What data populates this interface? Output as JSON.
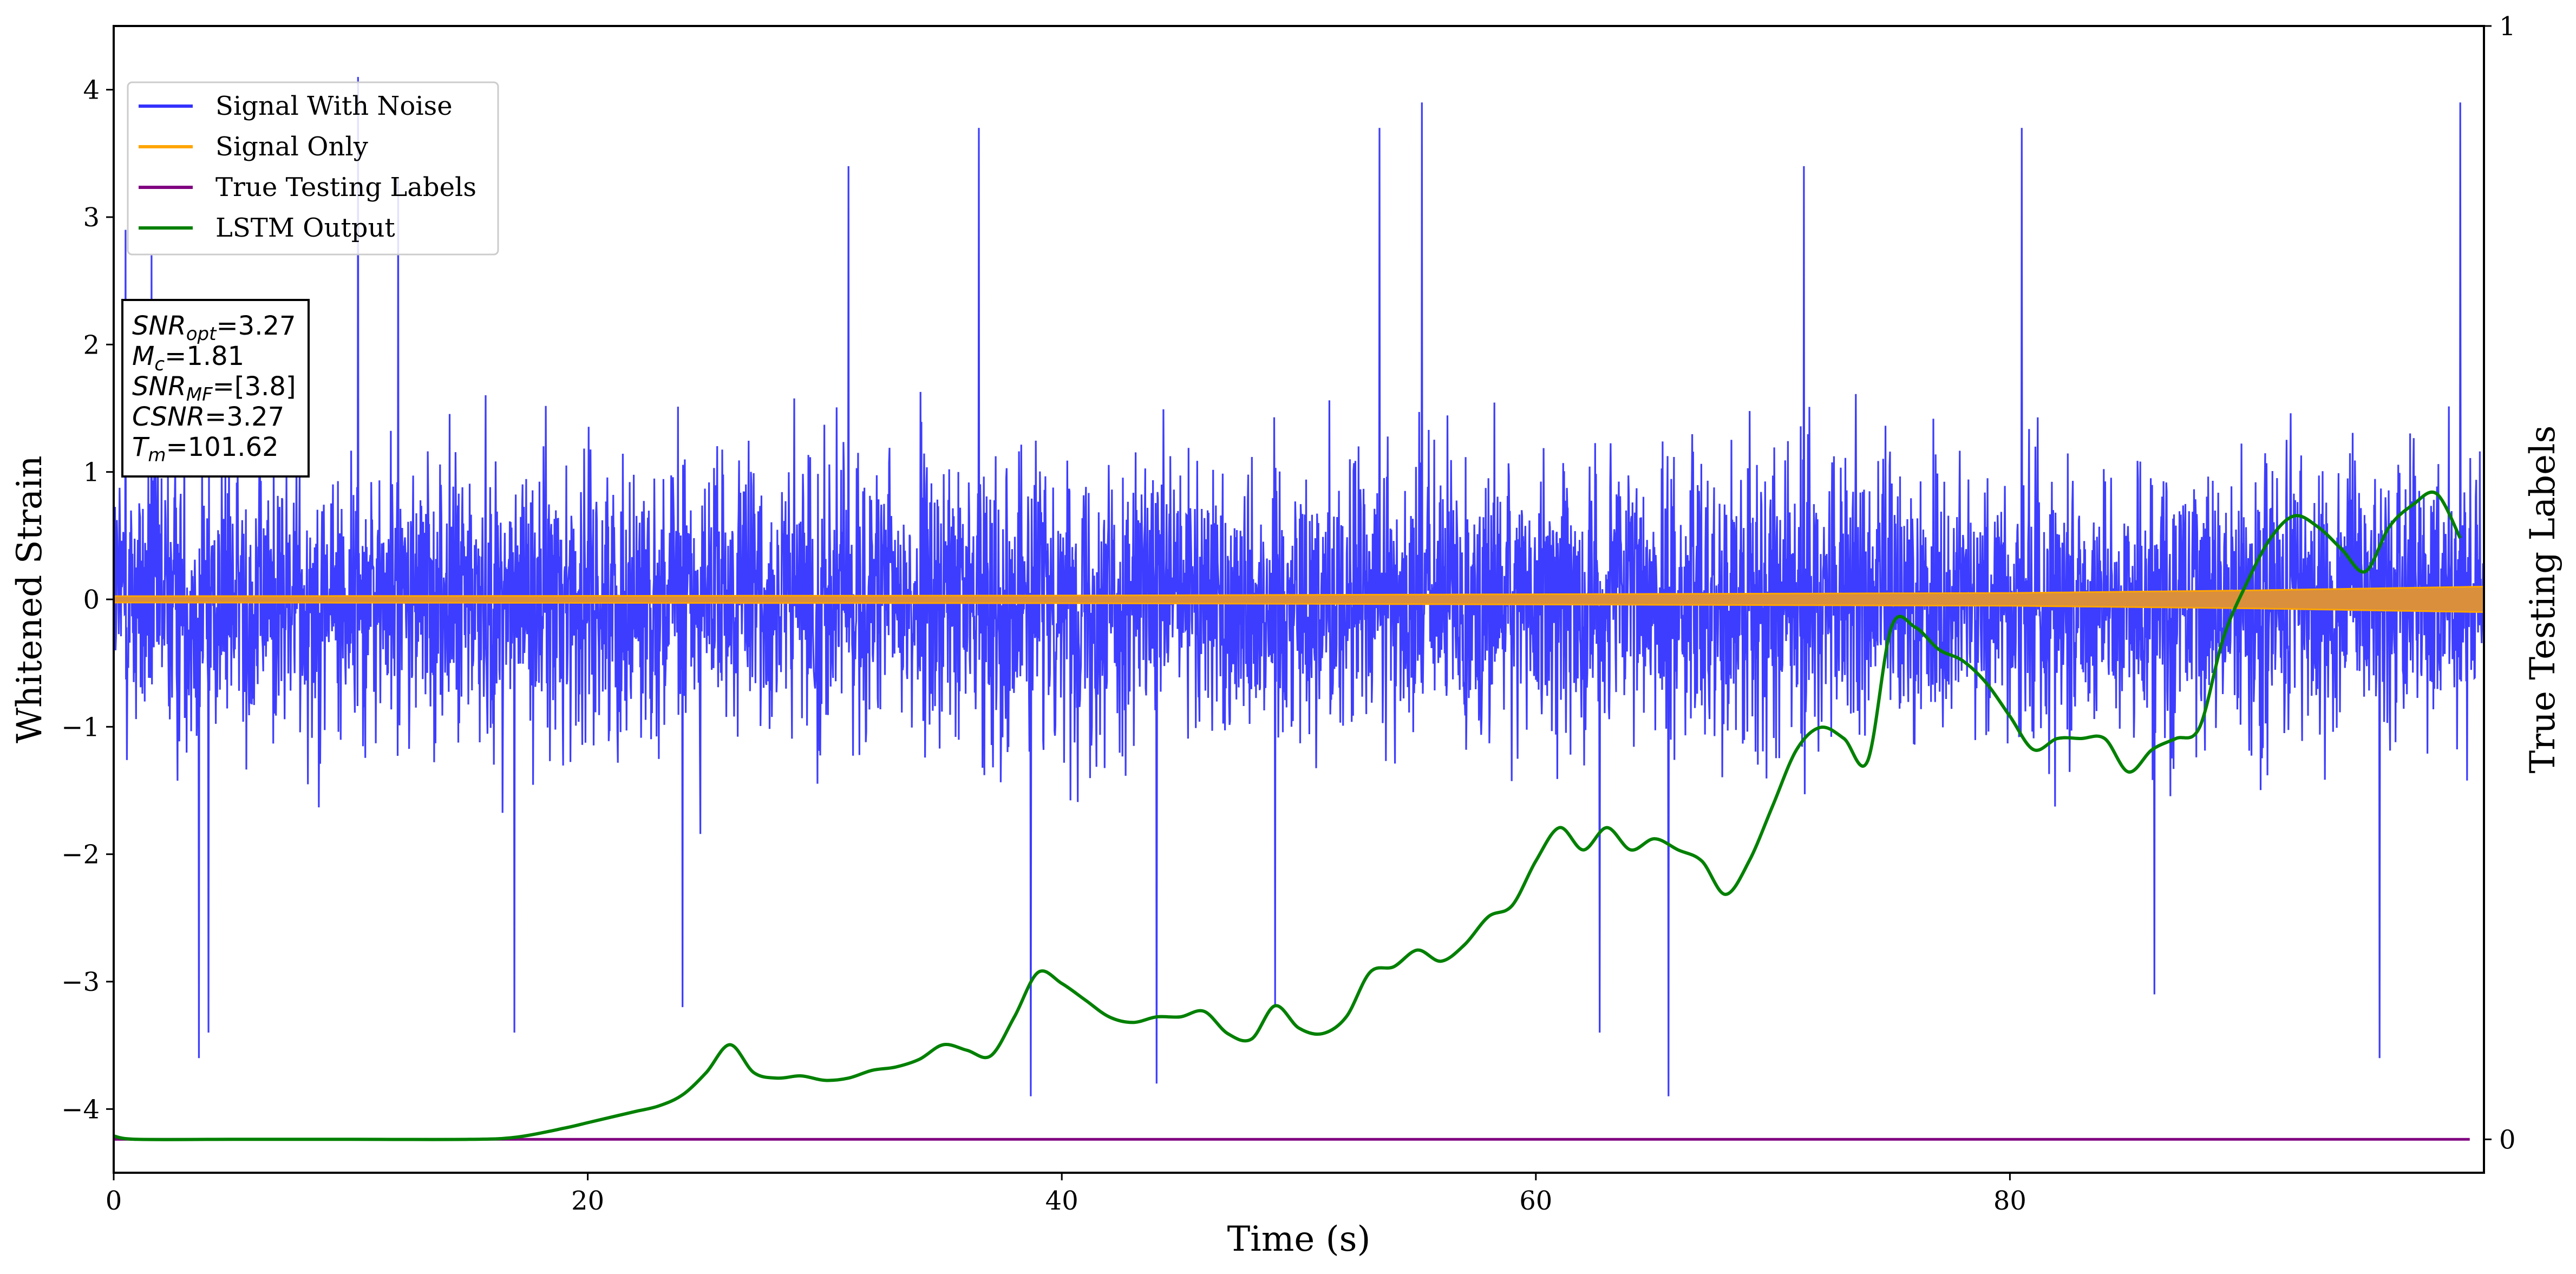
{
  "chart_data": {
    "type": "line",
    "title": "",
    "xlabel": "Time (s)",
    "ylabel": "Whitened Strain",
    "ylabel_right": "True Testing Labels",
    "xlim": [
      0,
      100
    ],
    "ylim": [
      -4.5,
      4.5
    ],
    "ylim_right": [
      -0.03,
      1.0
    ],
    "x_ticks": [
      0,
      20,
      40,
      60,
      80
    ],
    "y_ticks": [
      -4,
      -3,
      -2,
      -1,
      0,
      1,
      2,
      3,
      4
    ],
    "y_ticks_right": [
      0,
      1
    ],
    "grid": false,
    "legend_position": "top-left",
    "annotation_lines": [
      {
        "name": "SNR",
        "sub": "opt",
        "value": "=3.27"
      },
      {
        "name": "M",
        "sub": "c",
        "value": "=1.81"
      },
      {
        "name": "SNR",
        "sub": "MF",
        "value": "=[3.8]"
      },
      {
        "name": "CSNR",
        "sub": "",
        "value": "=3.27"
      },
      {
        "name": "T",
        "sub": "m",
        "value": "=101.62"
      }
    ],
    "series": [
      {
        "name": "Signal With Noise",
        "color": "#3333ff",
        "axis": "left",
        "description": "dense whitened noise, envelope approx ±1.8 with spikes",
        "envelope_upper": 1.8,
        "envelope_lower": -1.8,
        "spikes": [
          {
            "x": 0.5,
            "y": 2.9
          },
          {
            "x": 1.6,
            "y": 2.7
          },
          {
            "x": 3.6,
            "y": -3.6
          },
          {
            "x": 4.0,
            "y": -3.4
          },
          {
            "x": 10.3,
            "y": 4.1
          },
          {
            "x": 12.0,
            "y": 3.3
          },
          {
            "x": 16.9,
            "y": -3.4
          },
          {
            "x": 24.0,
            "y": -3.2
          },
          {
            "x": 31.0,
            "y": 3.4
          },
          {
            "x": 36.5,
            "y": 3.7
          },
          {
            "x": 38.7,
            "y": -3.9
          },
          {
            "x": 44.0,
            "y": -3.8
          },
          {
            "x": 49.0,
            "y": -3.2
          },
          {
            "x": 53.4,
            "y": 3.7
          },
          {
            "x": 55.2,
            "y": 3.9
          },
          {
            "x": 62.7,
            "y": -3.4
          },
          {
            "x": 65.6,
            "y": -3.9
          },
          {
            "x": 71.3,
            "y": 3.4
          },
          {
            "x": 80.5,
            "y": 3.7
          },
          {
            "x": 86.1,
            "y": -3.1
          },
          {
            "x": 95.6,
            "y": -3.6
          },
          {
            "x": 99.0,
            "y": 3.9
          }
        ]
      },
      {
        "name": "Signal Only",
        "color": "#ffa500",
        "axis": "left",
        "description": "chirp signal, amplitude ~0.02 rising to ~0.1",
        "amplitude_points": [
          [
            0,
            0.025
          ],
          [
            40,
            0.03
          ],
          [
            80,
            0.05
          ],
          [
            90,
            0.07
          ],
          [
            100,
            0.1
          ]
        ]
      },
      {
        "name": "True Testing Labels",
        "color": "#800080",
        "axis": "right",
        "x": [
          0,
          100
        ],
        "y": [
          0,
          0
        ]
      },
      {
        "name": "LSTM Output",
        "color": "#008000",
        "axis": "right",
        "x": [
          0,
          1,
          5,
          10,
          15,
          17,
          19,
          20,
          21,
          22,
          23,
          24,
          25,
          26,
          27,
          28,
          29,
          30,
          31,
          32,
          33,
          34,
          35,
          36,
          37,
          38,
          39,
          40,
          41,
          42,
          43,
          44,
          45,
          46,
          47,
          48,
          49,
          50,
          51,
          52,
          53,
          54,
          55,
          56,
          57,
          58,
          59,
          60,
          61,
          62,
          63,
          64,
          65,
          66,
          67,
          68,
          69,
          70,
          71,
          72,
          73,
          74,
          75,
          76,
          77,
          78,
          79,
          80,
          81,
          82,
          83,
          84,
          85,
          86,
          87,
          88,
          89,
          90,
          91,
          92,
          93,
          94,
          95,
          96,
          97,
          98,
          99
        ],
        "y": [
          0.003,
          0.0,
          0.0,
          0.0,
          0.0,
          0.002,
          0.01,
          0.015,
          0.02,
          0.025,
          0.03,
          0.04,
          0.06,
          0.085,
          0.06,
          0.055,
          0.057,
          0.053,
          0.055,
          0.062,
          0.065,
          0.072,
          0.085,
          0.08,
          0.075,
          0.11,
          0.15,
          0.14,
          0.125,
          0.11,
          0.105,
          0.11,
          0.11,
          0.115,
          0.095,
          0.09,
          0.12,
          0.1,
          0.095,
          0.11,
          0.15,
          0.155,
          0.17,
          0.16,
          0.175,
          0.2,
          0.21,
          0.25,
          0.28,
          0.26,
          0.28,
          0.26,
          0.27,
          0.26,
          0.25,
          0.22,
          0.25,
          0.3,
          0.35,
          0.37,
          0.36,
          0.34,
          0.46,
          0.46,
          0.44,
          0.43,
          0.41,
          0.38,
          0.35,
          0.36,
          0.36,
          0.36,
          0.33,
          0.35,
          0.36,
          0.37,
          0.45,
          0.5,
          0.54,
          0.56,
          0.55,
          0.53,
          0.51,
          0.55,
          0.57,
          0.58,
          0.54
        ]
      }
    ]
  }
}
